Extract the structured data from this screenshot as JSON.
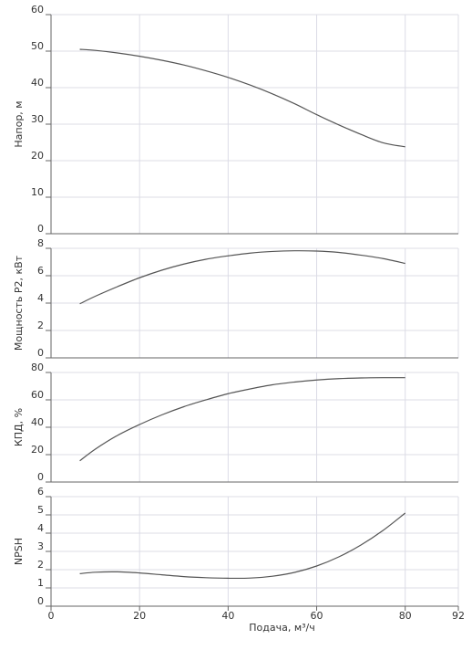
{
  "chart_data": [
    {
      "type": "line",
      "ylabel": "Напор, м",
      "ylim": [
        0,
        60
      ],
      "yticks": [
        0,
        10,
        20,
        30,
        40,
        50,
        60
      ],
      "xlim": [
        0,
        92
      ],
      "series": [
        {
          "x": [
            6.5,
            10,
            15,
            20,
            25,
            30,
            35,
            40,
            45,
            50,
            55,
            60,
            65,
            70,
            75,
            80
          ],
          "y": [
            50.5,
            50.2,
            49.5,
            48.6,
            47.5,
            46.2,
            44.6,
            42.8,
            40.7,
            38.3,
            35.6,
            32.6,
            29.8,
            27.2,
            24.9,
            23.8
          ]
        }
      ]
    },
    {
      "type": "line",
      "ylabel": "Мощность P2, кВт",
      "ylim": [
        0,
        8
      ],
      "yticks": [
        0,
        2,
        4,
        6,
        8
      ],
      "xlim": [
        0,
        92
      ],
      "series": [
        {
          "x": [
            6.5,
            10,
            15,
            20,
            25,
            30,
            35,
            40,
            45,
            50,
            55,
            60,
            65,
            70,
            75,
            80
          ],
          "y": [
            3.95,
            4.5,
            5.2,
            5.85,
            6.4,
            6.85,
            7.2,
            7.45,
            7.65,
            7.77,
            7.82,
            7.8,
            7.7,
            7.5,
            7.25,
            6.9
          ]
        }
      ]
    },
    {
      "type": "line",
      "ylabel": "КПД, %",
      "ylim": [
        0,
        80
      ],
      "yticks": [
        0,
        20,
        40,
        60,
        80
      ],
      "xlim": [
        0,
        92
      ],
      "series": [
        {
          "x": [
            6.5,
            10,
            15,
            20,
            25,
            30,
            35,
            40,
            45,
            50,
            55,
            60,
            65,
            70,
            75,
            80
          ],
          "y": [
            15.5,
            24,
            34,
            42,
            49,
            55,
            60,
            64.5,
            68,
            71,
            73,
            74.5,
            75.5,
            76,
            76.2,
            76.2
          ]
        }
      ]
    },
    {
      "type": "line",
      "ylabel": "NPSH",
      "xlabel": "Подача, м³/ч",
      "ylim": [
        0,
        6
      ],
      "yticks": [
        0,
        1,
        2,
        3,
        4,
        5,
        6
      ],
      "xlim": [
        0,
        92
      ],
      "xticks": [
        0,
        20,
        40,
        60,
        80,
        92
      ],
      "series": [
        {
          "x": [
            6.5,
            10,
            15,
            20,
            25,
            30,
            35,
            40,
            45,
            50,
            55,
            60,
            65,
            70,
            75,
            80
          ],
          "y": [
            1.78,
            1.86,
            1.88,
            1.82,
            1.72,
            1.62,
            1.56,
            1.53,
            1.54,
            1.64,
            1.85,
            2.2,
            2.7,
            3.35,
            4.15,
            5.1
          ]
        }
      ]
    }
  ]
}
